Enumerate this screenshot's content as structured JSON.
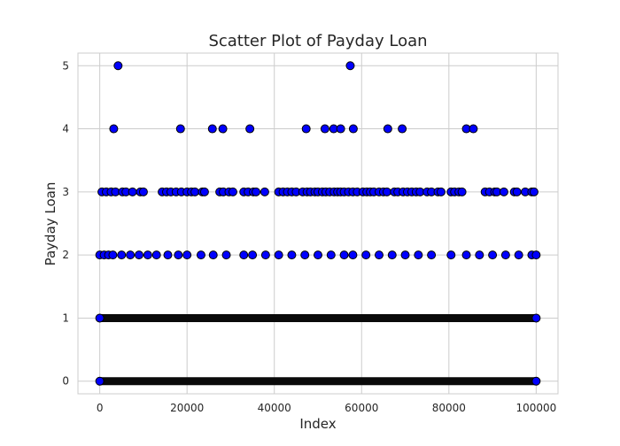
{
  "chart_data": {
    "type": "scatter",
    "title": "Scatter Plot of Payday Loan",
    "xlabel": "Index",
    "ylabel": "Payday Loan",
    "xlim": [
      -5000,
      105000
    ],
    "ylim": [
      -0.2,
      5.2
    ],
    "x_ticks": [
      0,
      20000,
      40000,
      60000,
      80000,
      100000
    ],
    "x_tick_labels": [
      "0",
      "20000",
      "40000",
      "60000",
      "80000",
      "100000"
    ],
    "y_ticks": [
      0,
      1,
      2,
      3,
      4,
      5
    ],
    "y_tick_labels": [
      "0",
      "1",
      "2",
      "3",
      "4",
      "5"
    ],
    "grid": true,
    "marker_color": "#0000ff",
    "marker_edge_color": "#000000",
    "dense_levels": [
      {
        "y": 0,
        "x_start": 0,
        "x_end": 100000
      },
      {
        "y": 1,
        "x_start": 0,
        "x_end": 100000
      }
    ],
    "series": [
      {
        "values": [
          {
            "x": 0,
            "y": 0
          },
          {
            "x": 100000,
            "y": 0
          },
          {
            "x": 0,
            "y": 1
          },
          {
            "x": 100000,
            "y": 1
          },
          {
            "x": 0,
            "y": 2
          },
          {
            "x": 1000,
            "y": 2
          },
          {
            "x": 2000,
            "y": 2
          },
          {
            "x": 3000,
            "y": 2
          },
          {
            "x": 5000,
            "y": 2
          },
          {
            "x": 7000,
            "y": 2
          },
          {
            "x": 9000,
            "y": 2
          },
          {
            "x": 11000,
            "y": 2
          },
          {
            "x": 13000,
            "y": 2
          },
          {
            "x": 15600,
            "y": 2
          },
          {
            "x": 18000,
            "y": 2
          },
          {
            "x": 20000,
            "y": 2
          },
          {
            "x": 23200,
            "y": 2
          },
          {
            "x": 26000,
            "y": 2
          },
          {
            "x": 29000,
            "y": 2
          },
          {
            "x": 33000,
            "y": 2
          },
          {
            "x": 35000,
            "y": 2
          },
          {
            "x": 38000,
            "y": 2
          },
          {
            "x": 41000,
            "y": 2
          },
          {
            "x": 44000,
            "y": 2
          },
          {
            "x": 47000,
            "y": 2
          },
          {
            "x": 50000,
            "y": 2
          },
          {
            "x": 53000,
            "y": 2
          },
          {
            "x": 56000,
            "y": 2
          },
          {
            "x": 58000,
            "y": 2
          },
          {
            "x": 61000,
            "y": 2
          },
          {
            "x": 64000,
            "y": 2
          },
          {
            "x": 67000,
            "y": 2
          },
          {
            "x": 70000,
            "y": 2
          },
          {
            "x": 73000,
            "y": 2
          },
          {
            "x": 76000,
            "y": 2
          },
          {
            "x": 80500,
            "y": 2
          },
          {
            "x": 84000,
            "y": 2
          },
          {
            "x": 87000,
            "y": 2
          },
          {
            "x": 90000,
            "y": 2
          },
          {
            "x": 93000,
            "y": 2
          },
          {
            "x": 96000,
            "y": 2
          },
          {
            "x": 99000,
            "y": 2
          },
          {
            "x": 100000,
            "y": 2
          },
          {
            "x": 500,
            "y": 3
          },
          {
            "x": 1500,
            "y": 3
          },
          {
            "x": 2600,
            "y": 3
          },
          {
            "x": 3600,
            "y": 3
          },
          {
            "x": 5200,
            "y": 3
          },
          {
            "x": 6000,
            "y": 3
          },
          {
            "x": 7500,
            "y": 3
          },
          {
            "x": 9300,
            "y": 3
          },
          {
            "x": 10000,
            "y": 3
          },
          {
            "x": 14300,
            "y": 3
          },
          {
            "x": 15300,
            "y": 3
          },
          {
            "x": 16300,
            "y": 3
          },
          {
            "x": 17500,
            "y": 3
          },
          {
            "x": 18700,
            "y": 3
          },
          {
            "x": 20000,
            "y": 3
          },
          {
            "x": 21000,
            "y": 3
          },
          {
            "x": 21800,
            "y": 3
          },
          {
            "x": 23500,
            "y": 3
          },
          {
            "x": 24000,
            "y": 3
          },
          {
            "x": 27500,
            "y": 3
          },
          {
            "x": 28300,
            "y": 3
          },
          {
            "x": 29600,
            "y": 3
          },
          {
            "x": 30500,
            "y": 3
          },
          {
            "x": 33000,
            "y": 3
          },
          {
            "x": 34000,
            "y": 3
          },
          {
            "x": 35200,
            "y": 3
          },
          {
            "x": 35800,
            "y": 3
          },
          {
            "x": 37800,
            "y": 3
          },
          {
            "x": 41000,
            "y": 3
          },
          {
            "x": 42000,
            "y": 3
          },
          {
            "x": 43000,
            "y": 3
          },
          {
            "x": 44000,
            "y": 3
          },
          {
            "x": 45000,
            "y": 3
          },
          {
            "x": 46500,
            "y": 3
          },
          {
            "x": 47500,
            "y": 3
          },
          {
            "x": 48300,
            "y": 3
          },
          {
            "x": 49300,
            "y": 3
          },
          {
            "x": 50000,
            "y": 3
          },
          {
            "x": 51000,
            "y": 3
          },
          {
            "x": 51800,
            "y": 3
          },
          {
            "x": 52700,
            "y": 3
          },
          {
            "x": 53700,
            "y": 3
          },
          {
            "x": 54500,
            "y": 3
          },
          {
            "x": 55200,
            "y": 3
          },
          {
            "x": 56000,
            "y": 3
          },
          {
            "x": 57000,
            "y": 3
          },
          {
            "x": 58000,
            "y": 3
          },
          {
            "x": 59000,
            "y": 3
          },
          {
            "x": 60300,
            "y": 3
          },
          {
            "x": 61200,
            "y": 3
          },
          {
            "x": 62000,
            "y": 3
          },
          {
            "x": 62800,
            "y": 3
          },
          {
            "x": 64000,
            "y": 3
          },
          {
            "x": 65000,
            "y": 3
          },
          {
            "x": 65800,
            "y": 3
          },
          {
            "x": 67500,
            "y": 3
          },
          {
            "x": 68300,
            "y": 3
          },
          {
            "x": 69500,
            "y": 3
          },
          {
            "x": 70500,
            "y": 3
          },
          {
            "x": 71500,
            "y": 3
          },
          {
            "x": 72500,
            "y": 3
          },
          {
            "x": 73400,
            "y": 3
          },
          {
            "x": 75000,
            "y": 3
          },
          {
            "x": 76000,
            "y": 3
          },
          {
            "x": 77500,
            "y": 3
          },
          {
            "x": 78200,
            "y": 3
          },
          {
            "x": 80500,
            "y": 3
          },
          {
            "x": 81300,
            "y": 3
          },
          {
            "x": 82300,
            "y": 3
          },
          {
            "x": 83000,
            "y": 3
          },
          {
            "x": 88300,
            "y": 3
          },
          {
            "x": 89300,
            "y": 3
          },
          {
            "x": 90500,
            "y": 3
          },
          {
            "x": 91000,
            "y": 3
          },
          {
            "x": 92600,
            "y": 3
          },
          {
            "x": 95000,
            "y": 3
          },
          {
            "x": 95600,
            "y": 3
          },
          {
            "x": 97500,
            "y": 3
          },
          {
            "x": 99000,
            "y": 3
          },
          {
            "x": 99500,
            "y": 3
          },
          {
            "x": 3200,
            "y": 4
          },
          {
            "x": 18500,
            "y": 4
          },
          {
            "x": 25800,
            "y": 4
          },
          {
            "x": 28200,
            "y": 4
          },
          {
            "x": 34400,
            "y": 4
          },
          {
            "x": 47300,
            "y": 4
          },
          {
            "x": 51600,
            "y": 4
          },
          {
            "x": 53600,
            "y": 4
          },
          {
            "x": 55200,
            "y": 4
          },
          {
            "x": 58100,
            "y": 4
          },
          {
            "x": 66000,
            "y": 4
          },
          {
            "x": 69300,
            "y": 4
          },
          {
            "x": 84000,
            "y": 4
          },
          {
            "x": 85600,
            "y": 4
          },
          {
            "x": 4200,
            "y": 5
          },
          {
            "x": 57400,
            "y": 5
          }
        ]
      }
    ]
  }
}
